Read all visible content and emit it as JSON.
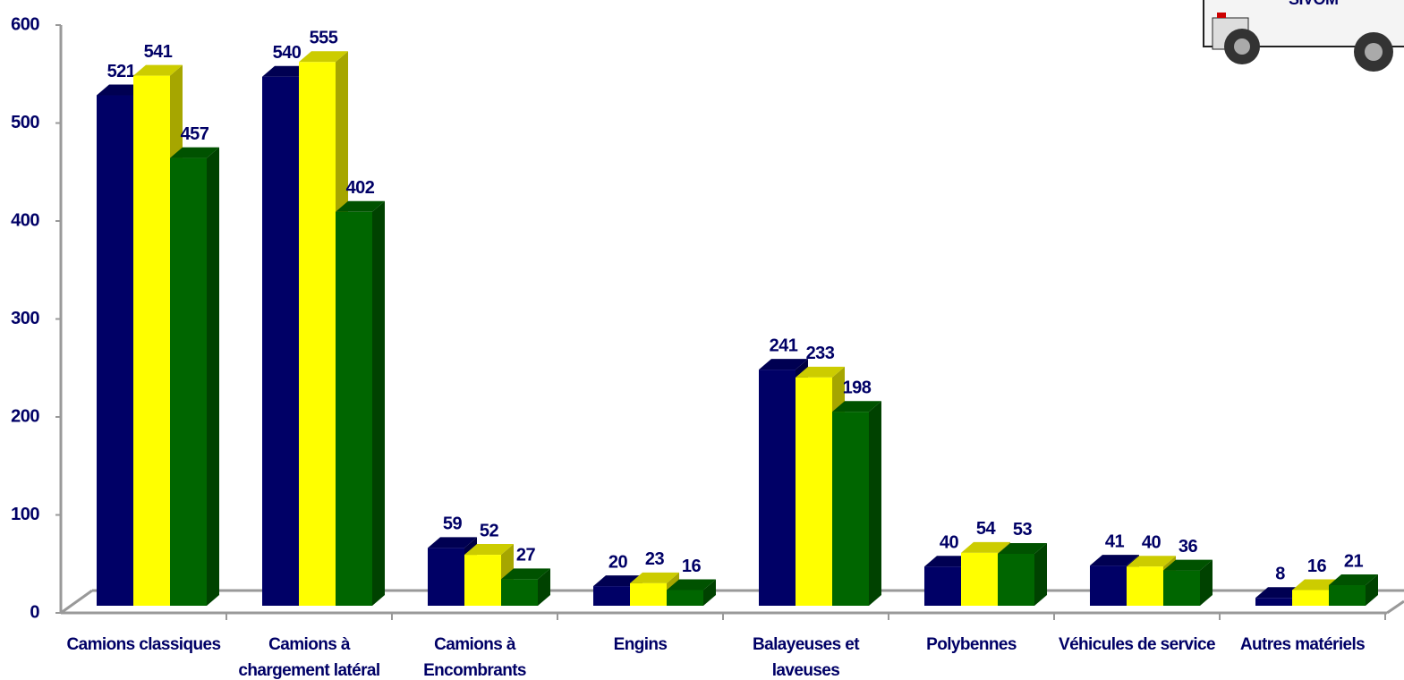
{
  "chart_data": {
    "type": "bar3d",
    "categories": [
      "Camions  classiques",
      "Camions à\nchargement latéral",
      "Camions à\nEncombrants",
      "Engins",
      "Balayeuses et\nlaveuses",
      "Polybennes",
      "Véhicules de service",
      "Autres matériels"
    ],
    "series": [
      {
        "color": "#000066",
        "values": [
          521,
          540,
          59,
          20,
          241,
          40,
          41,
          8
        ]
      },
      {
        "color": "#ffff00",
        "values": [
          541,
          555,
          52,
          23,
          233,
          54,
          40,
          16
        ]
      },
      {
        "color": "#006600",
        "values": [
          457,
          402,
          27,
          16,
          198,
          53,
          36,
          21
        ]
      }
    ],
    "ylim": [
      0,
      600
    ],
    "yticks": [
      0,
      100,
      200,
      300,
      400,
      500,
      600
    ],
    "annotations": [
      "SIVOM"
    ]
  }
}
